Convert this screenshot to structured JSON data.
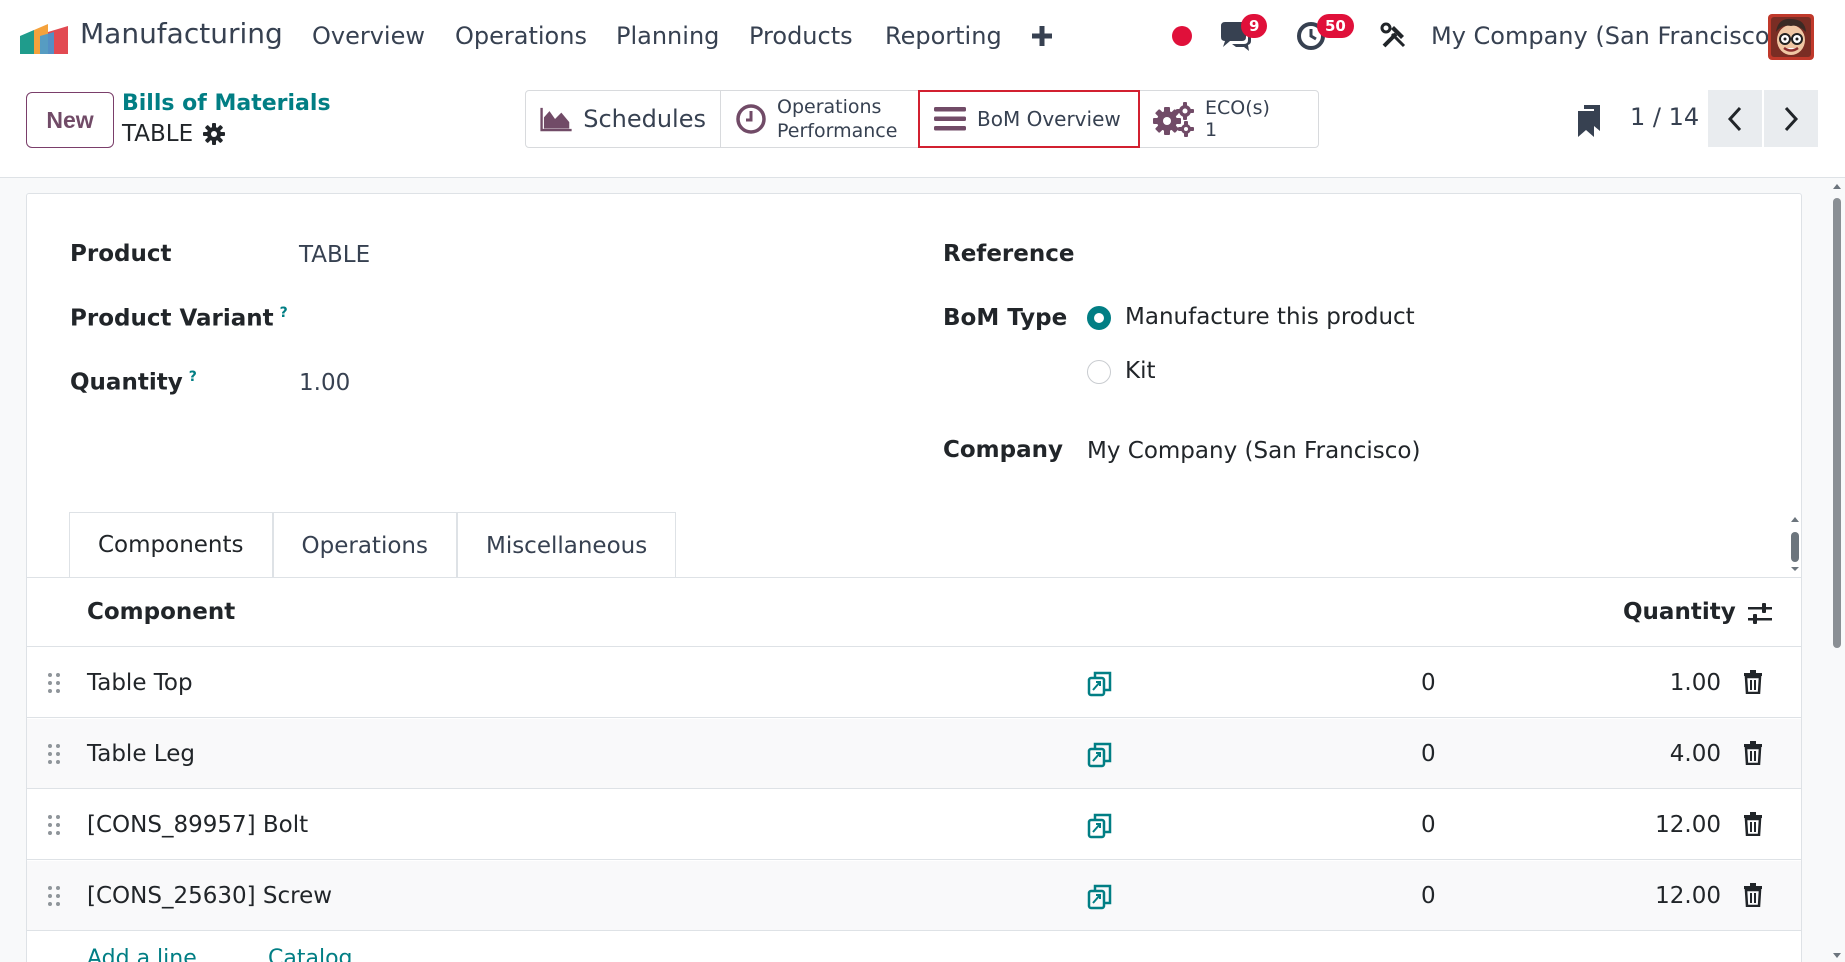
{
  "app": {
    "name": "Manufacturing"
  },
  "menu": [
    {
      "label": "Overview"
    },
    {
      "label": "Operations"
    },
    {
      "label": "Planning"
    },
    {
      "label": "Products"
    },
    {
      "label": "Reporting"
    }
  ],
  "systray": {
    "messages_count": "9",
    "activities_count": "50",
    "company": "My Company (San Francisco)"
  },
  "control": {
    "new_label": "New",
    "breadcrumb_parent": "Bills of Materials",
    "breadcrumb_current": "TABLE",
    "pager": "1 / 14"
  },
  "smart_buttons": {
    "schedules": "Schedules",
    "ops_perf_line1": "Operations",
    "ops_perf_line2": "Performance",
    "bom_overview": "BoM Overview",
    "eco_label": "ECO(s)",
    "eco_count": "1"
  },
  "form": {
    "product_label": "Product",
    "product_value": "TABLE",
    "variant_label": "Product Variant",
    "quantity_label": "Quantity",
    "quantity_value": "1.00",
    "reference_label": "Reference",
    "bom_type_label": "BoM Type",
    "bom_type_options": [
      "Manufacture this product",
      "Kit"
    ],
    "bom_type_selected": "Manufacture this product",
    "company_label": "Company",
    "company_value": "My Company (San Francisco)",
    "help_mark": "?"
  },
  "tabs": [
    {
      "label": "Components"
    },
    {
      "label": "Operations"
    },
    {
      "label": "Miscellaneous"
    }
  ],
  "table": {
    "col_component": "Component",
    "col_quantity": "Quantity",
    "rows": [
      {
        "component": "Table Top",
        "available": "0",
        "quantity": "1.00"
      },
      {
        "component": "Table Leg",
        "available": "0",
        "quantity": "4.00"
      },
      {
        "component": "[CONS_89957] Bolt",
        "available": "0",
        "quantity": "12.00"
      },
      {
        "component": "[CONS_25630] Screw",
        "available": "0",
        "quantity": "12.00"
      }
    ],
    "add_line": "Add a line",
    "catalog": "Catalog"
  },
  "colors": {
    "brand": "#714b67",
    "accent": "#017e84",
    "alert": "#d22030"
  }
}
